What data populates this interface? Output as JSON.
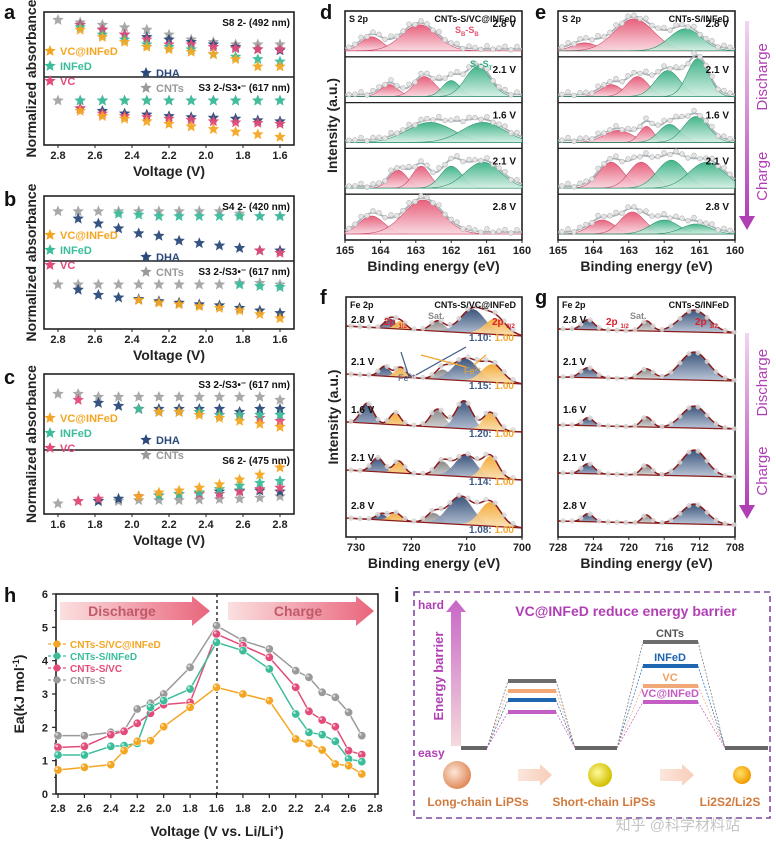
{
  "colors": {
    "VC@INFeD": "#f4a623",
    "INFeD": "#3bbd9b",
    "VC": "#e34b78",
    "DHA": "#2b4a7a",
    "CNTs": "#9a9a9a",
    "sulfur_red": "#e5506f",
    "sulfur_green": "#2fae7f",
    "fe3": "#3d5a86",
    "fe2": "#f2a52c",
    "sat": "#8c8c8c",
    "purple": "#b03fb5",
    "barrier_frame": "#7d4aa0"
  },
  "panel_labels": [
    "a",
    "b",
    "c",
    "d",
    "e",
    "f",
    "g",
    "h",
    "i"
  ],
  "uv_panels": [
    {
      "id": "a",
      "ylabel": "Normalized absorbance",
      "xlabel": "Voltage (V)",
      "x_ticks": [
        "2.8",
        "2.6",
        "2.4",
        "2.2",
        "2.0",
        "1.8",
        "1.6"
      ],
      "direction": "discharge",
      "top_label": "S8 2- (492 nm)",
      "bottom_label": "S3 2-/S3 •- (617 nm)",
      "legend": [
        "VC@INFeD",
        "INFeD",
        "VC",
        "DHA",
        "CNTs"
      ]
    },
    {
      "id": "b",
      "ylabel": "Normalized absorbance",
      "xlabel": "Voltage (V)",
      "x_ticks": [
        "2.8",
        "2.6",
        "2.4",
        "2.2",
        "2.0",
        "1.8",
        "1.6"
      ],
      "direction": "discharge",
      "top_label": "S4 2- (420 nm)",
      "bottom_label": "S3 2-/S3 •- (617 nm)",
      "legend": [
        "VC@INFeD",
        "INFeD",
        "VC",
        "DHA",
        "CNTs"
      ]
    },
    {
      "id": "c",
      "ylabel": "Normalized absorbance",
      "xlabel": "Voltage (V)",
      "x_ticks": [
        "1.6",
        "1.8",
        "2.0",
        "2.2",
        "2.4",
        "2.6",
        "2.8"
      ],
      "direction": "charge",
      "top_label": "S3 2-/S3 •- (617 nm)",
      "bottom_label": "S6 2- (475 nm)",
      "legend": [
        "VC@INFeD",
        "INFeD",
        "VC",
        "DHA",
        "CNTs"
      ]
    }
  ],
  "xps_s": [
    {
      "id": "d",
      "element": "S 2p",
      "sample": "CNTs-S/VC@INFeD",
      "xlabel": "Binding energy (eV)",
      "ylabel": "Intensity (a.u.)",
      "x_ticks": [
        "165",
        "164",
        "163",
        "162",
        "161",
        "160"
      ],
      "rows": [
        "2.8 V",
        "2.1 V",
        "1.6 V",
        "2.1 V",
        "2.8 V"
      ],
      "annotations": [
        "SB-SB",
        "ST-ST"
      ]
    },
    {
      "id": "e",
      "element": "S 2p",
      "sample": "CNTs-S/INFeD",
      "xlabel": "Binding energy (eV)",
      "x_ticks": [
        "165",
        "164",
        "163",
        "162",
        "161",
        "160"
      ],
      "rows": [
        "2.8 V",
        "2.1 V",
        "1.6 V",
        "2.1 V",
        "2.8 V"
      ],
      "side": {
        "discharge": "Discharge",
        "charge": "Charge"
      }
    }
  ],
  "xps_fe": [
    {
      "id": "f",
      "element": "Fe 2p",
      "sample": "CNTs-S/VC@INFeD",
      "xlabel": "Binding energy (eV)",
      "ylabel": "Intensity (a.u.)",
      "x_ticks": [
        "730",
        "720",
        "710",
        "700"
      ],
      "rows": [
        "2.8 V",
        "2.1 V",
        "1.6 V",
        "2.1 V",
        "2.8 V"
      ],
      "ratios": [
        {
          "fe3": "1.10",
          "fe2": "1.00"
        },
        {
          "fe3": "1.15",
          "fe2": "1.00"
        },
        {
          "fe3": "1.20",
          "fe2": "1.00"
        },
        {
          "fe3": "1.14",
          "fe2": "1.00"
        },
        {
          "fe3": "1.08",
          "fe2": "1.00"
        }
      ],
      "labels": {
        "p12": "2p 1/2",
        "p32": "2p 3/2",
        "sat": "Sat.",
        "fe3": "Fe3+",
        "fe2": "Fe2+"
      }
    },
    {
      "id": "g",
      "element": "Fe 2p",
      "sample": "CNTs-S/INFeD",
      "xlabel": "Binding energy (eV)",
      "x_ticks": [
        "728",
        "724",
        "720",
        "716",
        "712",
        "708"
      ],
      "rows": [
        "2.8 V",
        "2.1 V",
        "1.6 V",
        "2.1 V",
        "2.8 V"
      ],
      "labels": {
        "p12": "2p 1/2",
        "p32": "2p 3/2",
        "sat": "Sat."
      },
      "side": {
        "discharge": "Discharge",
        "charge": "Charge"
      }
    }
  ],
  "chart_data": {
    "type": "line",
    "title": "",
    "xlabel": "Voltage (V vs. Li/Li+)",
    "ylabel": "Ea(kJ mol-1)",
    "ylim": [
      0,
      6
    ],
    "y_ticks": [
      "0",
      "1",
      "2",
      "3",
      "4",
      "5",
      "6"
    ],
    "x_ticks": [
      "2.8",
      "2.6",
      "2.4",
      "2.2",
      "2.0",
      "1.8",
      "1.6",
      "1.8",
      "2.0",
      "2.2",
      "2.4",
      "2.6",
      "2.8"
    ],
    "x_positions": [
      2.8,
      2.6,
      2.4,
      2.3,
      2.2,
      2.1,
      2.0,
      1.8,
      1.6,
      1.6,
      1.8,
      2.0,
      2.2,
      2.3,
      2.4,
      2.5,
      2.6,
      2.7
    ],
    "segment": [
      "discharge",
      "discharge",
      "discharge",
      "discharge",
      "discharge",
      "discharge",
      "discharge",
      "discharge",
      "discharge",
      "charge",
      "charge",
      "charge",
      "charge",
      "charge",
      "charge",
      "charge",
      "charge",
      "charge"
    ],
    "arrows": {
      "discharge": "Discharge",
      "charge": "Charge"
    },
    "legend_position": "left",
    "series": [
      {
        "name": "CNTs-S/VC@INFeD",
        "key": "VC@INFeD",
        "values": [
          0.72,
          0.8,
          0.88,
          1.3,
          1.58,
          1.6,
          2.02,
          2.6,
          3.2,
          3.2,
          3.0,
          2.8,
          1.65,
          1.52,
          1.32,
          0.9,
          0.85,
          0.6
        ]
      },
      {
        "name": "CNTs-S/INFeD",
        "key": "INFeD",
        "values": [
          1.17,
          1.17,
          1.43,
          1.45,
          1.52,
          2.6,
          2.8,
          3.15,
          4.55,
          4.55,
          4.3,
          3.75,
          2.4,
          1.85,
          1.78,
          1.58,
          1.05,
          0.97
        ]
      },
      {
        "name": "CNTs-S/VC",
        "key": "VC",
        "values": [
          1.4,
          1.43,
          1.78,
          1.88,
          2.12,
          2.42,
          2.68,
          2.75,
          4.8,
          4.8,
          4.45,
          4.1,
          3.2,
          2.48,
          2.22,
          2.02,
          1.3,
          1.18
        ]
      },
      {
        "name": "CNTs-S",
        "key": "CNTs",
        "values": [
          1.75,
          1.75,
          1.85,
          1.9,
          2.55,
          2.72,
          3.0,
          3.8,
          5.05,
          5.05,
          4.6,
          4.35,
          3.7,
          3.5,
          3.05,
          2.9,
          2.45,
          1.75
        ]
      }
    ]
  },
  "barrier": {
    "title": "VC@INFeD reduce energy barrier",
    "hard": "hard",
    "easy": "easy",
    "axis_label": "Energy barrier",
    "levels": [
      "CNTs",
      "INFeD",
      "VC",
      "VC@INFeD"
    ],
    "species": [
      "Long-chain LiPSs",
      "Short-chain LiPSs",
      "Li2S2/Li2S"
    ]
  },
  "watermark": "知乎 @科学材料站"
}
